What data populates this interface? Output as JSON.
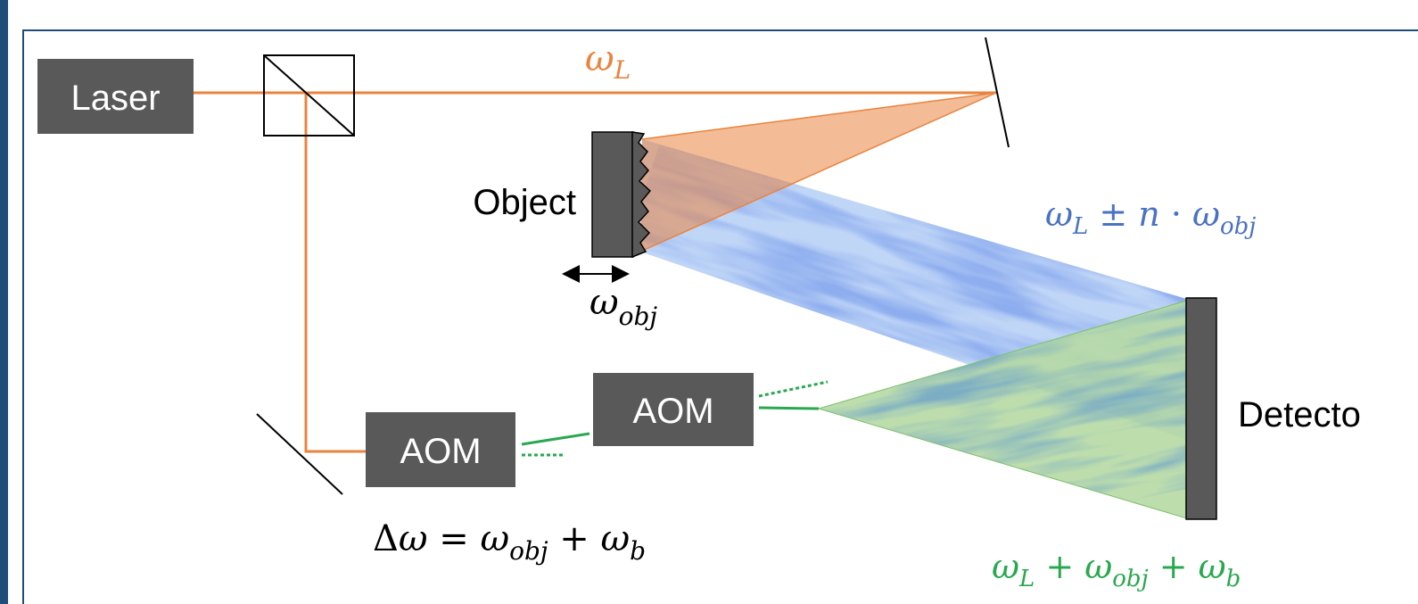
{
  "title": "",
  "colors": {
    "frame": "#1f4e79",
    "laser_beam": "#e9843f",
    "object_beam": "#4a72c4",
    "reference_beam": "#2aa84f",
    "component_fill": "#595959",
    "component_text": "#ffffff",
    "label_text": "#000000"
  },
  "components": {
    "laser": {
      "label": "Laser"
    },
    "beam_splitter": {
      "label": ""
    },
    "object": {
      "label": "Object"
    },
    "detector": {
      "label": "Detecto"
    },
    "aom_1": {
      "label": "AOM"
    },
    "aom_2": {
      "label": "AOM"
    }
  },
  "annotations": {
    "omega_L": {
      "base": "ω",
      "sub": "L"
    },
    "omega_obj": {
      "base": "ω",
      "sub": "obj"
    },
    "scattered": {
      "base": "ω",
      "sub": "L",
      "op1": " ± ",
      "n": "n",
      "op2": " · ",
      "base2": "ω",
      "sub2": "obj"
    },
    "delta_omega": {
      "delta": "Δ",
      "base": "ω",
      "eq": " = ",
      "base2": "ω",
      "sub2": "obj",
      "plus": " + ",
      "base3": "ω",
      "sub3": "b"
    },
    "reference_freq": {
      "base": "ω",
      "sub": "L",
      "plus1": " + ",
      "base2": "ω",
      "sub2": "obj",
      "plus2": " + ",
      "base3": "ω",
      "sub3": "b"
    }
  }
}
